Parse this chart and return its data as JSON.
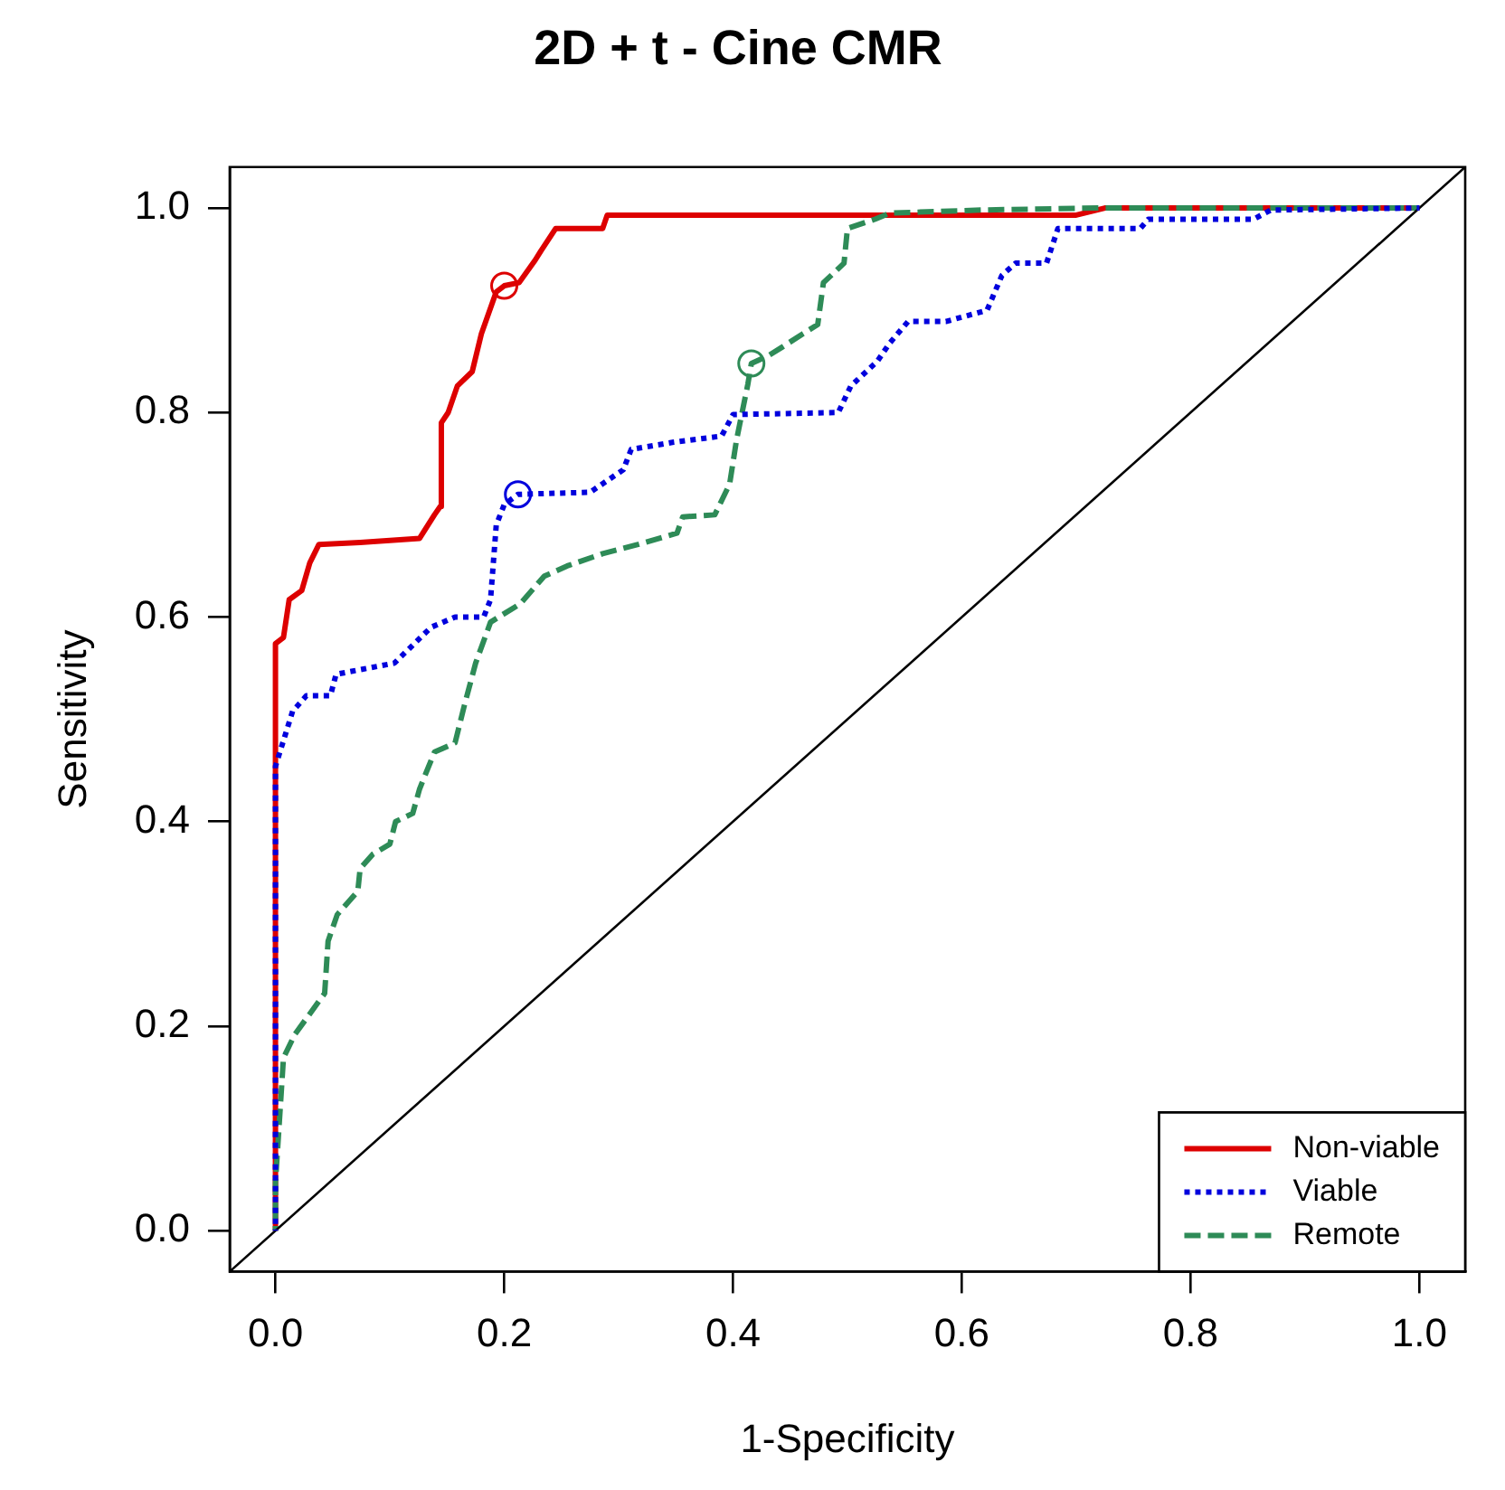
{
  "chart_data": {
    "type": "line",
    "title": "2D + t - Cine CMR",
    "xlabel": "1-Specificity",
    "ylabel": "Sensitivity",
    "xlim": [
      -0.04,
      1.04
    ],
    "ylim": [
      -0.04,
      1.04
    ],
    "xticks": [
      {
        "value": 0,
        "label": "0.0"
      },
      0.2,
      0.4,
      0.6,
      0.8,
      {
        "value": 1,
        "label": "1.0"
      }
    ],
    "yticks": [
      {
        "value": 0,
        "label": "0.0"
      },
      0.2,
      0.4,
      0.6,
      0.8,
      {
        "value": 1,
        "label": "1.0"
      }
    ],
    "grid": false,
    "legend": "bottom right",
    "marker": "none",
    "series": [
      {
        "name": "Non-viable",
        "color": "#dd0000",
        "line_style": "solid",
        "x": [
          0,
          0,
          0.007,
          0.012,
          0.023,
          0.03,
          0.038,
          0.074,
          0.126,
          0.139,
          0.144,
          0.145,
          0.151,
          0.159,
          0.172,
          0.18,
          0.193,
          0.2,
          0.213,
          0.227,
          0.232,
          0.245,
          0.286,
          0.29,
          0.7,
          0.725,
          1
        ],
        "values": [
          0,
          0.574,
          0.58,
          0.617,
          0.626,
          0.653,
          0.671,
          0.673,
          0.677,
          0.7,
          0.708,
          0.79,
          0.8,
          0.826,
          0.84,
          0.877,
          0.918,
          0.924,
          0.927,
          0.949,
          0.958,
          0.98,
          0.98,
          0.993,
          0.993,
          1,
          1
        ]
      },
      {
        "name": "Viable",
        "color": "#0000dd",
        "line_style": "dotted",
        "x": [
          0,
          0,
          0.015,
          0.027,
          0.048,
          0.053,
          0.104,
          0.136,
          0.157,
          0.182,
          0.188,
          0.193,
          0.2,
          0.212,
          0.275,
          0.304,
          0.311,
          0.348,
          0.39,
          0.4,
          0.492,
          0.503,
          0.526,
          0.537,
          0.553,
          0.586,
          0.622,
          0.635,
          0.647,
          0.674,
          0.684,
          0.756,
          0.763,
          0.855,
          0.87,
          1
        ],
        "values": [
          0,
          0.454,
          0.508,
          0.523,
          0.523,
          0.544,
          0.555,
          0.59,
          0.6,
          0.6,
          0.617,
          0.69,
          0.71,
          0.72,
          0.722,
          0.744,
          0.764,
          0.771,
          0.777,
          0.798,
          0.8,
          0.826,
          0.85,
          0.868,
          0.889,
          0.889,
          0.9,
          0.934,
          0.946,
          0.946,
          0.98,
          0.98,
          0.989,
          0.989,
          0.998,
          1
        ]
      },
      {
        "name": "Remote",
        "color": "#2e8b57",
        "line_style": "dashed",
        "x": [
          0,
          0,
          0.007,
          0.017,
          0.043,
          0.046,
          0.054,
          0.072,
          0.074,
          0.085,
          0.1,
          0.105,
          0.12,
          0.126,
          0.139,
          0.157,
          0.165,
          0.175,
          0.188,
          0.214,
          0.235,
          0.255,
          0.286,
          0.317,
          0.351,
          0.356,
          0.384,
          0.397,
          0.403,
          0.413,
          0.416,
          0.43,
          0.443,
          0.461,
          0.474,
          0.479,
          0.497,
          0.5,
          0.524,
          0.537,
          0.617,
          0.72,
          1
        ],
        "values": [
          0,
          0.047,
          0.169,
          0.192,
          0.232,
          0.283,
          0.309,
          0.332,
          0.354,
          0.368,
          0.378,
          0.4,
          0.408,
          0.432,
          0.468,
          0.477,
          0.513,
          0.555,
          0.595,
          0.613,
          0.64,
          0.65,
          0.662,
          0.671,
          0.682,
          0.698,
          0.7,
          0.73,
          0.773,
          0.828,
          0.848,
          0.855,
          0.864,
          0.877,
          0.886,
          0.927,
          0.946,
          0.98,
          0.989,
          0.995,
          0.998,
          1,
          1
        ]
      },
      {
        "type": "line",
        "color": "#000000",
        "line_style": "solid",
        "x": [
          -0.04,
          1.04
        ],
        "values": [
          -0.04,
          1.04
        ]
      },
      {
        "type": "scatter",
        "color": "#dd0000",
        "marker": "circle",
        "x": [
          0.2
        ],
        "values": [
          0.924
        ]
      },
      {
        "type": "scatter",
        "color": "#0000dd",
        "marker": "circle",
        "x": [
          0.212
        ],
        "values": [
          0.72
        ]
      },
      {
        "type": "scatter",
        "color": "#2e8b57",
        "marker": "circle",
        "x": [
          0.416
        ],
        "values": [
          0.848
        ]
      }
    ]
  }
}
